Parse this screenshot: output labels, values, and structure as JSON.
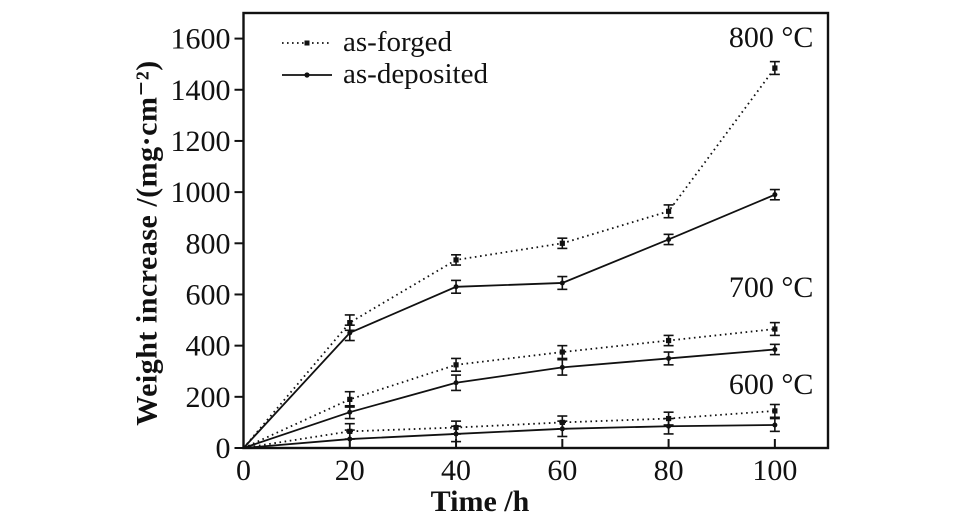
{
  "figure": {
    "background": "#ffffff",
    "ink": "#111111"
  },
  "chart_data": {
    "type": "line",
    "title": "",
    "xlabel": "Time /h",
    "ylabel": "Weight increase /(mg·cm⁻²)",
    "xlim": [
      0,
      110
    ],
    "ylim": [
      0,
      1700
    ],
    "xticks": [
      0,
      20,
      40,
      60,
      80,
      100
    ],
    "yticks": [
      0,
      200,
      400,
      600,
      800,
      1000,
      1200,
      1400,
      1600
    ],
    "grid": false,
    "legend_position": "top-left",
    "legend": [
      {
        "label": "as-forged",
        "line": "dotted",
        "marker": "square"
      },
      {
        "label": "as-deposited",
        "line": "solid",
        "marker": "circle"
      }
    ],
    "x": [
      0,
      20,
      40,
      60,
      80,
      100
    ],
    "series": [
      {
        "group": "800 °C",
        "variant": "as-forged",
        "style": "dotted",
        "marker": "square",
        "values": [
          0,
          490,
          735,
          800,
          925,
          1485
        ],
        "errors": [
          0,
          30,
          20,
          20,
          25,
          25
        ]
      },
      {
        "group": "800 °C",
        "variant": "as-deposited",
        "style": "solid",
        "marker": "circle",
        "values": [
          0,
          450,
          630,
          645,
          815,
          990
        ],
        "errors": [
          0,
          30,
          25,
          25,
          20,
          20
        ]
      },
      {
        "group": "700 °C",
        "variant": "as-forged",
        "style": "dotted",
        "marker": "square",
        "values": [
          0,
          190,
          325,
          375,
          420,
          465
        ],
        "errors": [
          0,
          30,
          25,
          25,
          20,
          25
        ]
      },
      {
        "group": "700 °C",
        "variant": "as-deposited",
        "style": "solid",
        "marker": "circle",
        "values": [
          0,
          140,
          255,
          315,
          350,
          385
        ],
        "errors": [
          0,
          25,
          30,
          30,
          25,
          20
        ]
      },
      {
        "group": "600 °C",
        "variant": "as-forged",
        "style": "dotted",
        "marker": "square",
        "values": [
          0,
          65,
          80,
          100,
          115,
          145
        ],
        "errors": [
          0,
          30,
          25,
          25,
          25,
          25
        ]
      },
      {
        "group": "600 °C",
        "variant": "as-deposited",
        "style": "solid",
        "marker": "circle",
        "values": [
          0,
          35,
          55,
          75,
          85,
          90
        ],
        "errors": [
          0,
          35,
          30,
          30,
          30,
          25
        ]
      }
    ],
    "annotations": [
      {
        "text": "800 °C",
        "x": 99.3,
        "y": 1607
      },
      {
        "text": "700 °C",
        "x": 99.3,
        "y": 629
      },
      {
        "text": "600 °C",
        "x": 99.3,
        "y": 250
      }
    ]
  }
}
